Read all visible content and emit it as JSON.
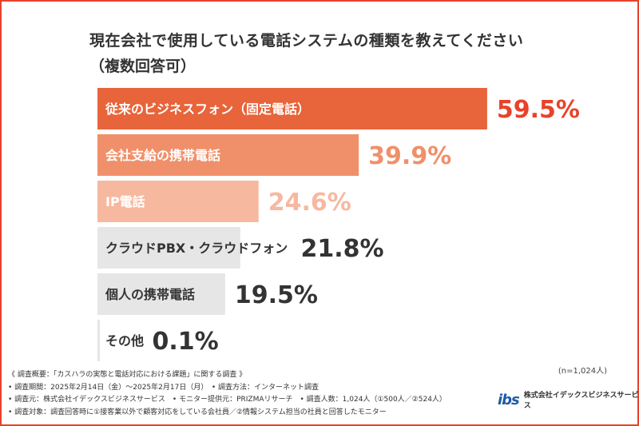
{
  "title": "現在会社で使用している電話システムの種類を教えてください",
  "subtitle": "（複数回答可）",
  "chart_data": {
    "type": "bar",
    "orientation": "horizontal",
    "categories": [
      "従来のビジネスフォン（固定電話）",
      "会社支給の携帯電話",
      "IP電話",
      "クラウドPBX・クラウドフォン",
      "個人の携帯電話",
      "その他"
    ],
    "values": [
      59.5,
      39.9,
      24.6,
      21.8,
      19.5,
      0.1
    ],
    "value_labels": [
      "59.5%",
      "39.9%",
      "24.6%",
      "21.8%",
      "19.5%",
      "0.1%"
    ],
    "xlim": [
      0,
      100
    ],
    "bar_colors": [
      "#e8643a",
      "#f0906a",
      "#f7b8a0",
      "#e6e6e6",
      "#e6e6e6",
      "#e6e6e6"
    ],
    "label_colors": [
      "#ffffff",
      "#ffffff",
      "#ffffff",
      "#333333",
      "#333333",
      "#333333"
    ],
    "value_colors": [
      "#e8432a",
      "#f0906a",
      "#f7b8a0",
      "#333333",
      "#333333",
      "#333333"
    ],
    "grid": false
  },
  "n_note": "(n=1,024人)",
  "footer": {
    "line1": "《 調査概要：「カスハラの実態と電話対応における課題」に関する調査 》",
    "line2": "• 調査期間：2025年2月14日（金）〜2025年2月17日（月）　• 調査方法：インターネット調査",
    "line3": "• 調査元：株式会社イデックスビジネスサービス　• モニター提供元：PRIZMAリサーチ　• 調査人数：1,024人（①500人／②524人）",
    "line4": "• 調査対象：調査回答時に①接客業以外で顧客対応をしている会社員／②情報システム担当の社員と回答したモニター"
  },
  "logo": {
    "mark": "ibs",
    "company": "株式会社イデックスビジネスサービス"
  },
  "colors": {
    "accent": "#e8432a",
    "brand": "#1e5aa8"
  }
}
